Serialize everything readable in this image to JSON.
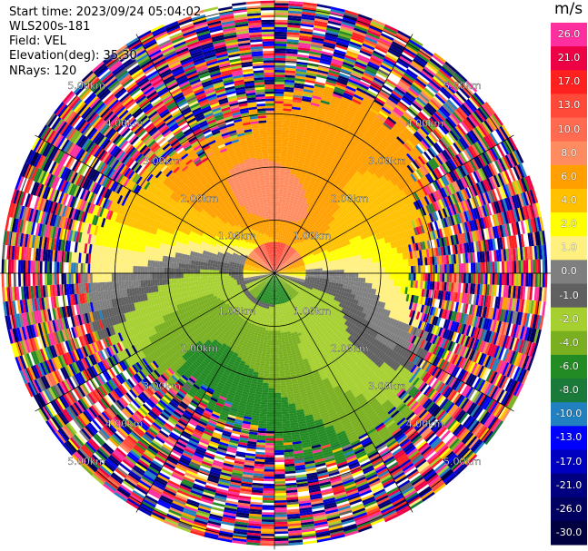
{
  "header": {
    "start_time": "Start time: 2023/09/24 05:04:02",
    "instrument": "WLS200s-181",
    "field": "Field: VEL",
    "elevation": "Elevation(deg): 35.30",
    "nrays": "NRays: 120"
  },
  "chart_data": {
    "type": "heatmap",
    "projection": "polar-ppi",
    "field": "VEL",
    "nrays": 120,
    "elevation_deg": 35.3,
    "units": "m/s",
    "range_rings_km": [
      1.0,
      2.0,
      3.0,
      4.0,
      5.0
    ],
    "ring_labels": [
      "1.00km",
      "2.00km",
      "3.00km",
      "4.00km",
      "5.00km"
    ],
    "colorbar": {
      "ticks": [
        "26.0",
        "21.0",
        "17.0",
        "13.0",
        "10.0",
        "8.0",
        "6.0",
        "4.0",
        "2.0",
        "1.0",
        "0.0",
        "-1.0",
        "-2.0",
        "-4.0",
        "-6.0",
        "-8.0",
        "-10.0",
        "-13.0",
        "-17.0",
        "-21.0",
        "-26.0",
        "-30.0"
      ],
      "colors": [
        "#ff2f9f",
        "#ee0044",
        "#ff2020",
        "#ff4a3a",
        "#ff6a50",
        "#ff8c60",
        "#ffa000",
        "#ffc000",
        "#ffff00",
        "#fff080",
        "#7f7f7f",
        "#606060",
        "#a6d030",
        "#7ab020",
        "#238b23",
        "#1a7a3a",
        "#2080c0",
        "#0000ff",
        "#0000c0",
        "#000080",
        "#000060",
        "#000040"
      ],
      "values": [
        26.0,
        21.0,
        17.0,
        13.0,
        10.0,
        8.0,
        6.0,
        4.0,
        2.0,
        1.0,
        0.0,
        -1.0,
        -2.0,
        -4.0,
        -6.0,
        -8.0,
        -10.0,
        -13.0,
        -17.0,
        -21.0,
        -26.0,
        -30.0
      ]
    },
    "velocity_pattern": {
      "near_range_inbound_color_dir": "south",
      "near_range_outbound_color_dir": "north",
      "noise_beyond_km": 3.3
    }
  }
}
